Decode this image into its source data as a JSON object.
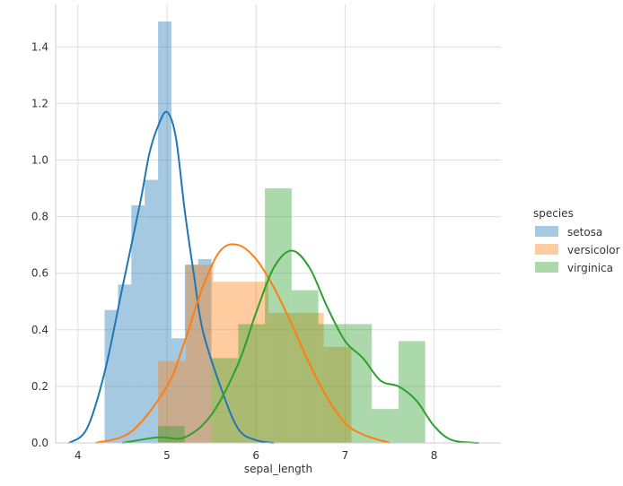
{
  "chart_data": {
    "type": "histogram",
    "title": "",
    "xlabel": "sepal_length",
    "ylabel": "",
    "xlim": [
      3.75,
      8.75
    ],
    "ylim": [
      0.0,
      1.55
    ],
    "xticks": [
      4,
      5,
      6,
      7,
      8
    ],
    "yticks": [
      0.0,
      0.2,
      0.4,
      0.6,
      0.8,
      1.0,
      1.2,
      1.4
    ],
    "grid": true,
    "legend_title": "species",
    "legend_position": "right",
    "series": [
      {
        "name": "setosa",
        "color": "#1f77b4",
        "hist": {
          "edges": [
            4.3,
            4.45,
            4.6,
            4.75,
            4.9,
            5.05,
            5.2,
            5.35,
            5.5,
            5.65,
            5.8
          ],
          "heights": [
            0.47,
            0.56,
            0.84,
            0.93,
            1.49,
            0.37,
            0.63,
            0.65,
            0.0,
            0.0
          ]
        },
        "kde": {
          "x": [
            3.9,
            4.1,
            4.3,
            4.5,
            4.7,
            4.8,
            4.9,
            5.0,
            5.1,
            5.2,
            5.3,
            5.4,
            5.6,
            5.8,
            6.0,
            6.2
          ],
          "y": [
            0.0,
            0.05,
            0.25,
            0.55,
            0.85,
            1.02,
            1.12,
            1.17,
            1.08,
            0.82,
            0.6,
            0.4,
            0.2,
            0.05,
            0.01,
            0.0
          ]
        }
      },
      {
        "name": "versicolor",
        "color": "#ff7f0e",
        "hist": {
          "edges": [
            4.9,
            5.21,
            5.52,
            5.83,
            6.14,
            6.45,
            6.76,
            7.07
          ],
          "heights": [
            0.29,
            0.63,
            0.57,
            0.57,
            0.46,
            0.46,
            0.34
          ]
        },
        "kde": {
          "x": [
            4.2,
            4.6,
            5.0,
            5.2,
            5.4,
            5.6,
            5.8,
            6.0,
            6.2,
            6.4,
            6.6,
            6.8,
            7.0,
            7.2,
            7.5
          ],
          "y": [
            0.0,
            0.04,
            0.2,
            0.36,
            0.55,
            0.68,
            0.7,
            0.65,
            0.55,
            0.42,
            0.28,
            0.16,
            0.07,
            0.03,
            0.0
          ]
        }
      },
      {
        "name": "virginica",
        "color": "#2ca02c",
        "hist": {
          "edges": [
            4.9,
            5.2,
            5.5,
            5.8,
            6.1,
            6.4,
            6.7,
            7.0,
            7.3,
            7.6,
            7.9
          ],
          "heights": [
            0.06,
            0.0,
            0.3,
            0.42,
            0.9,
            0.54,
            0.42,
            0.42,
            0.12,
            0.36
          ]
        },
        "kde": {
          "x": [
            4.5,
            4.9,
            5.2,
            5.5,
            5.8,
            6.0,
            6.2,
            6.4,
            6.6,
            6.8,
            7.0,
            7.2,
            7.4,
            7.6,
            7.8,
            8.0,
            8.2,
            8.5
          ],
          "y": [
            0.0,
            0.02,
            0.02,
            0.1,
            0.28,
            0.46,
            0.62,
            0.68,
            0.62,
            0.48,
            0.36,
            0.3,
            0.22,
            0.2,
            0.15,
            0.06,
            0.01,
            0.0
          ]
        }
      }
    ]
  }
}
